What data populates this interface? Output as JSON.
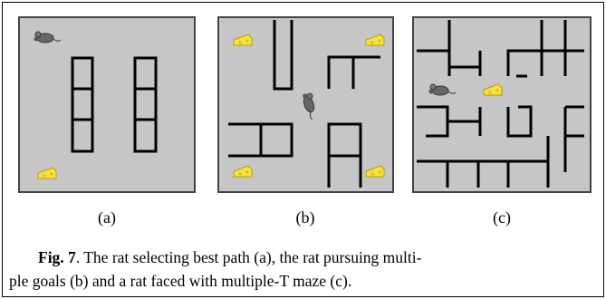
{
  "figure": {
    "panels": [
      {
        "label": "(a)"
      },
      {
        "label": "(b)"
      },
      {
        "label": "(c)"
      }
    ],
    "caption": {
      "label": "Fig. 7",
      "line1": ". The rat selecting best path (a), the rat pursuing multi-",
      "line2": "ple goals (b) and a rat faced with multiple-T maze (c)."
    }
  }
}
